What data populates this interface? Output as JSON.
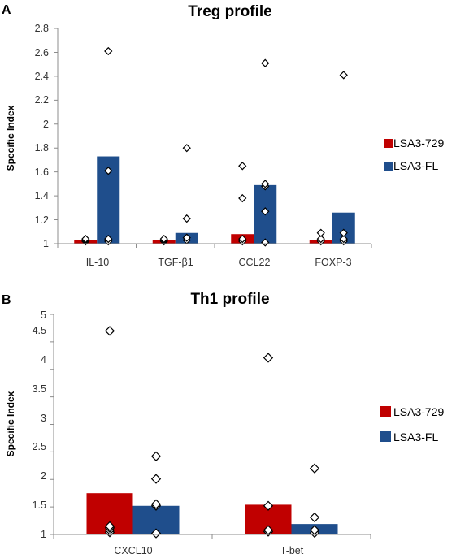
{
  "chart_data": [
    {
      "panel": "A",
      "type": "bar",
      "title": "Treg profile",
      "ylabel": "Specific Index",
      "xlabel": "",
      "ylim": [
        1,
        2.8
      ],
      "yticks": [
        "1",
        "1.2",
        "1.4",
        "1.6",
        "1.8",
        "2",
        "2.2",
        "2.4",
        "2.6",
        "2.8"
      ],
      "categories": [
        "IL-10",
        "TGF-β1",
        "CCL22",
        "FOXP-3"
      ],
      "legend_position": "right",
      "series": [
        {
          "name": "LSA3-729",
          "color": "#c00000",
          "values": [
            1.03,
            1.03,
            1.08,
            1.03
          ]
        },
        {
          "name": "LSA3-FL",
          "color": "#1f4e8c",
          "values": [
            1.73,
            1.09,
            1.49,
            1.26
          ]
        }
      ],
      "points": [
        [
          [
            1.02,
            1.03,
            1.04
          ],
          [
            1.02,
            1.04,
            1.61,
            2.61
          ]
        ],
        [
          [
            1.02,
            1.03,
            1.04
          ],
          [
            1.03,
            1.05,
            1.21,
            1.8
          ]
        ],
        [
          [
            1.02,
            1.04,
            1.38,
            1.65
          ],
          [
            1.01,
            1.27,
            1.48,
            1.5,
            2.51
          ]
        ],
        [
          [
            1.02,
            1.04,
            1.09
          ],
          [
            1.02,
            1.04,
            1.09,
            2.41
          ]
        ]
      ]
    },
    {
      "panel": "B",
      "type": "bar",
      "title": "Th1 profile",
      "ylabel": "Specific Index",
      "xlabel": "",
      "ylim": [
        1,
        5
      ],
      "yticks": [
        "1",
        "1.5",
        "2",
        "2.5",
        "3",
        "3.5",
        "4",
        "4.5",
        "5"
      ],
      "categories": [
        "CXCL10",
        "T-bet"
      ],
      "legend_position": "right",
      "series": [
        {
          "name": "LSA3-729",
          "color": "#c00000",
          "values": [
            1.75,
            1.54
          ]
        },
        {
          "name": "LSA3-FL",
          "color": "#1f4e8c",
          "values": [
            1.52,
            1.19
          ]
        }
      ],
      "points": [
        [
          [
            1.04,
            1.08,
            1.12,
            1.15,
            4.7
          ],
          [
            1.02,
            1.52,
            1.55,
            2.01,
            2.42
          ]
        ],
        [
          [
            1.05,
            1.08,
            1.52,
            4.21
          ],
          [
            1.03,
            1.08,
            1.31,
            2.2
          ]
        ]
      ]
    }
  ]
}
